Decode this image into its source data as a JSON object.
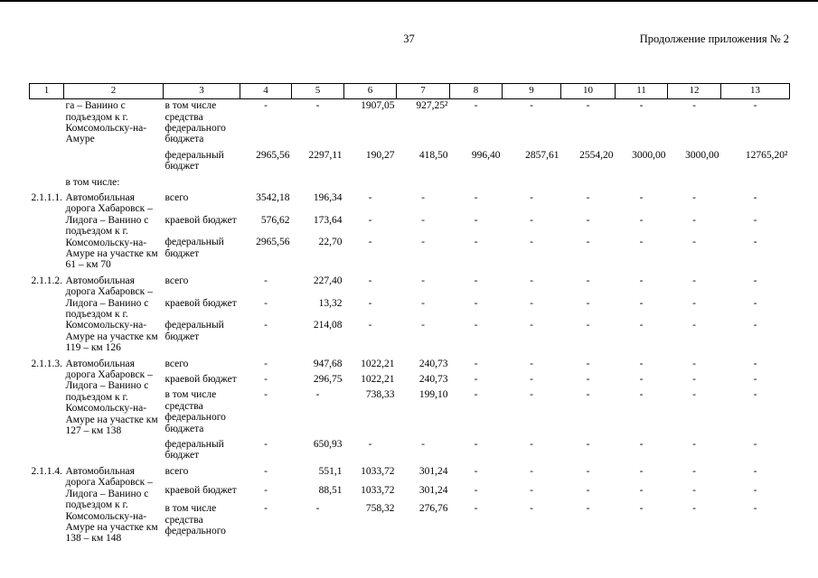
{
  "page": {
    "number": "37",
    "header_right": "Продолжение приложения № 2"
  },
  "table": {
    "column_headers": [
      "1",
      "2",
      "3",
      "4",
      "5",
      "6",
      "7",
      "8",
      "9",
      "10",
      "11",
      "12",
      "13"
    ],
    "groups": [
      {
        "num": "",
        "name": "га – Ванино с подъездом к г. Комсомольску-на-Амуре",
        "subrows": [
          {
            "type": "в том числе средства федерального бюджета",
            "values": [
              "-",
              "-",
              "1907,05",
              "927,25²",
              "-",
              "-",
              "-",
              "-",
              "-",
              "-"
            ]
          },
          {
            "type": "федеральный бюджет",
            "values": [
              "2965,56",
              "2297,11",
              "190,27",
              "418,50",
              "996,40",
              "2857,61",
              "2554,20",
              "3000,00",
              "3000,00",
              "12765,20²"
            ]
          }
        ]
      },
      {
        "num": "",
        "name": "в том числе:",
        "subrows": []
      },
      {
        "num": "2.1.1.1.",
        "name": "Автомобильная дорога Хабаровск – Лидога – Ванино с подъездом к г. Комсомольску-на-Амуре на участке км 61 – км 70",
        "subrows": [
          {
            "type": "всего",
            "values": [
              "3542,18",
              "196,34",
              "-",
              "-",
              "-",
              "-",
              "-",
              "-",
              "-",
              "-"
            ]
          },
          {
            "type": "краевой бюджет",
            "values": [
              "576,62",
              "173,64",
              "-",
              "-",
              "-",
              "-",
              "-",
              "-",
              "-",
              "-"
            ]
          },
          {
            "type": "федеральный бюджет",
            "values": [
              "2965,56",
              "22,70",
              "-",
              "-",
              "-",
              "-",
              "-",
              "-",
              "-",
              "-"
            ]
          }
        ]
      },
      {
        "num": "2.1.1.2.",
        "name": "Автомобильная дорога Хабаровск – Лидога – Ванино с подъездом к г. Комсомольску-на-Амуре на участке км 119 – км 126",
        "subrows": [
          {
            "type": "всего",
            "values": [
              "-",
              "227,40",
              "-",
              "-",
              "-",
              "-",
              "-",
              "-",
              "-",
              "-"
            ]
          },
          {
            "type": "краевой бюджет",
            "values": [
              "-",
              "13,32",
              "-",
              "-",
              "-",
              "-",
              "-",
              "-",
              "-",
              "-"
            ]
          },
          {
            "type": "федеральный бюджет",
            "values": [
              "-",
              "214,08",
              "-",
              "-",
              "-",
              "-",
              "-",
              "-",
              "-",
              "-"
            ]
          }
        ]
      },
      {
        "num": "2.1.1.3.",
        "name": "Автомобильная дорога Хабаровск – Лидога – Ванино с подъездом к г. Комсомольску-на-Амуре на участке км 127 – км 138",
        "subrows": [
          {
            "type": "всего",
            "values": [
              "-",
              "947,68",
              "1022,21",
              "240,73",
              "-",
              "-",
              "-",
              "-",
              "-",
              "-"
            ]
          },
          {
            "type": "краевой бюджет",
            "values": [
              "-",
              "296,75",
              "1022,21",
              "240,73",
              "-",
              "-",
              "-",
              "-",
              "-",
              "-"
            ]
          },
          {
            "type": "в том числе средства федерального бюджета",
            "values": [
              "-",
              "-",
              "738,33",
              "199,10",
              "-",
              "-",
              "-",
              "-",
              "-",
              "-"
            ]
          },
          {
            "type": "федеральный бюджет",
            "values": [
              "-",
              "650,93",
              "-",
              "-",
              "-",
              "-",
              "-",
              "-",
              "-",
              "-"
            ]
          }
        ]
      },
      {
        "num": "2.1.1.4.",
        "name": "Автомобильная дорога Хабаровск – Лидога – Ванино с подъездом к г. Комсомольску-на-Амуре на участке км 138 – км 148",
        "subrows": [
          {
            "type": "всего",
            "values": [
              "-",
              "551,1",
              "1033,72",
              "301,24",
              "-",
              "-",
              "-",
              "-",
              "-",
              "-"
            ]
          },
          {
            "type": "краевой бюджет",
            "values": [
              "-",
              "88,51",
              "1033,72",
              "301,24",
              "-",
              "-",
              "-",
              "-",
              "-",
              "-"
            ]
          },
          {
            "type": "в том числе средства федерального",
            "values": [
              "-",
              "-",
              "758,32",
              "276,76",
              "-",
              "-",
              "-",
              "-",
              "-",
              "-"
            ]
          }
        ]
      }
    ]
  }
}
